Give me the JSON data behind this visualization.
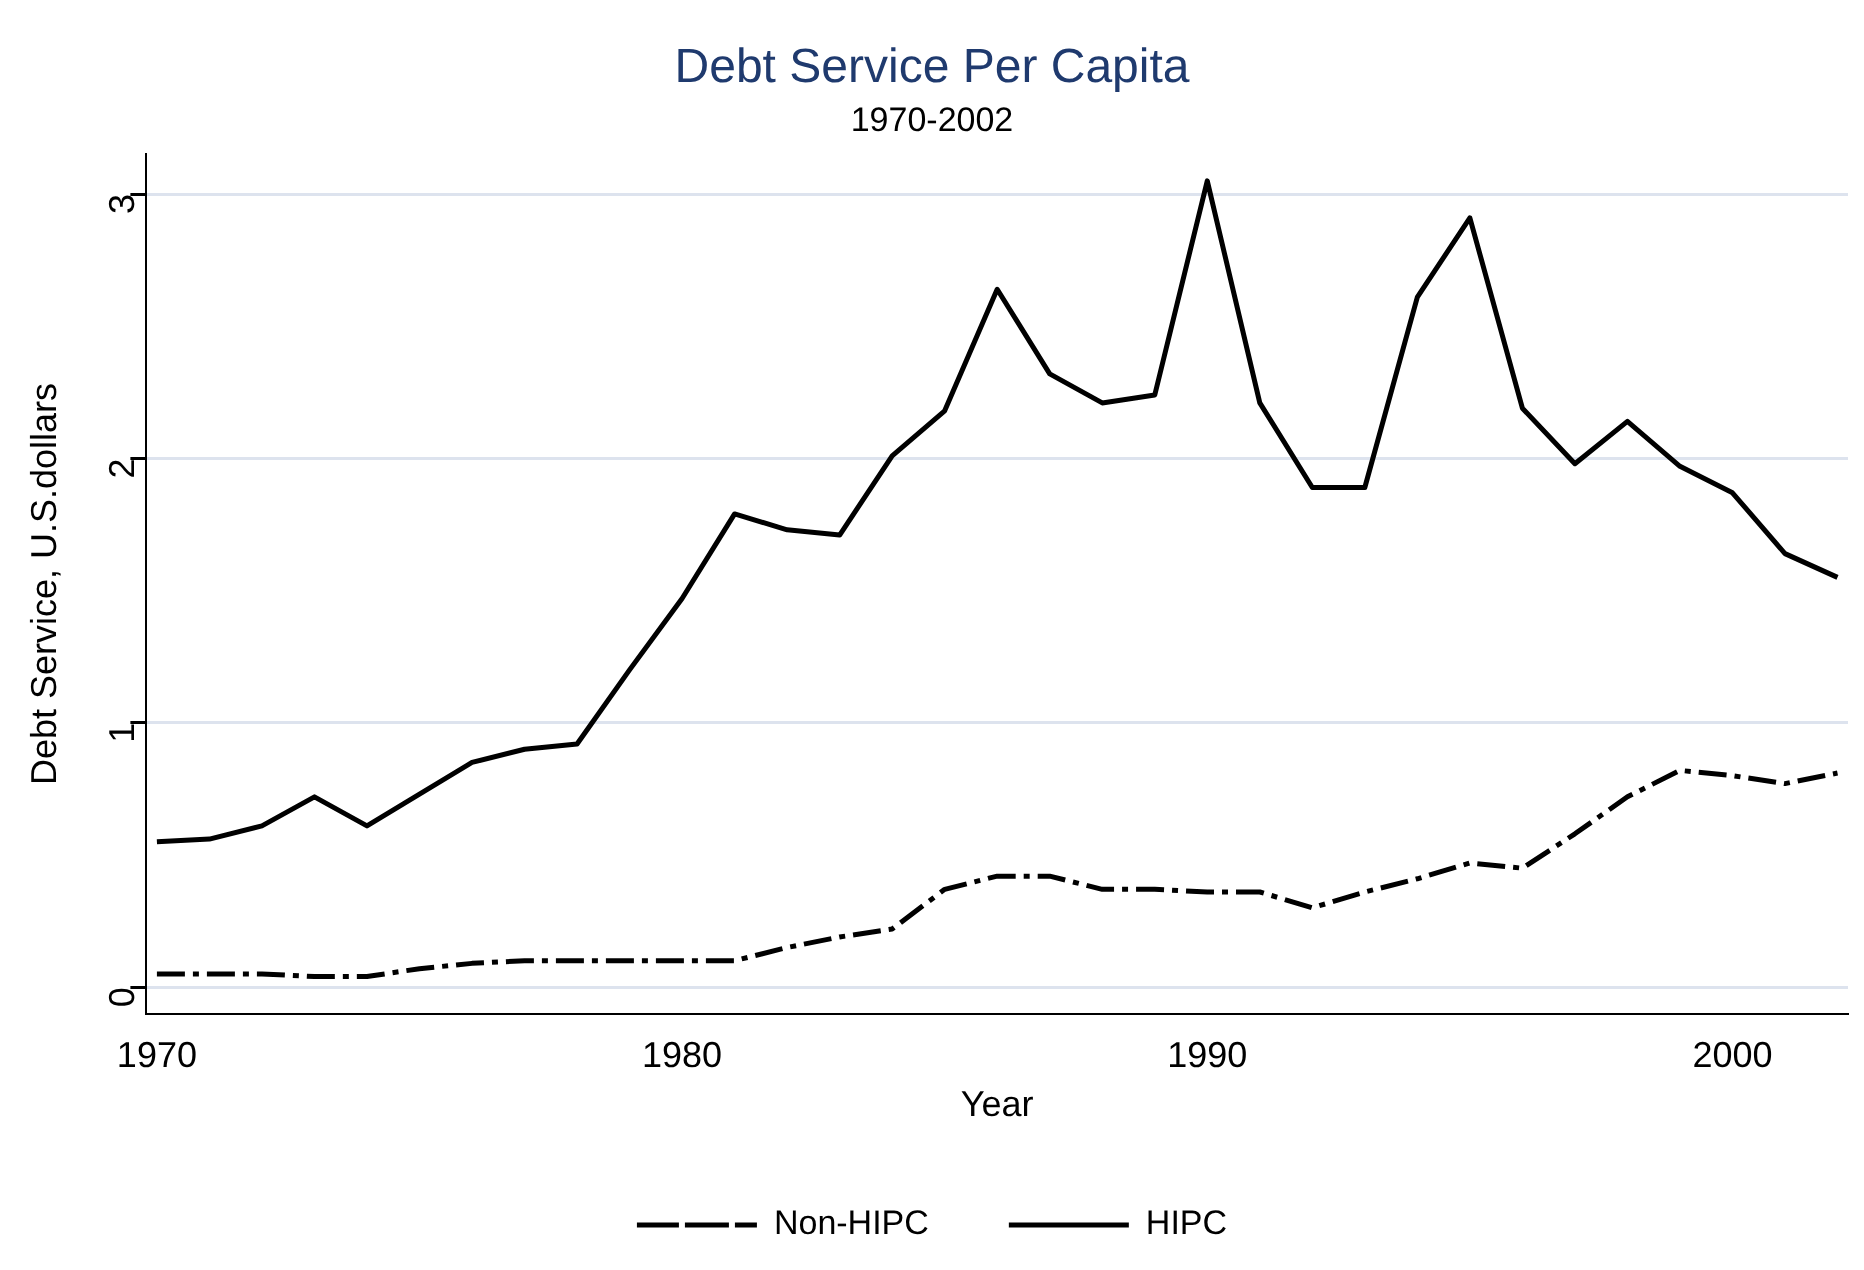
{
  "chart_data": {
    "type": "line",
    "title": "Debt Service Per Capita",
    "subtitle": "1970-2002",
    "xlabel": "Year",
    "ylabel": "Debt Service, U.S.dollars",
    "x": [
      1970,
      1971,
      1972,
      1973,
      1974,
      1975,
      1976,
      1977,
      1978,
      1979,
      1980,
      1981,
      1982,
      1983,
      1984,
      1985,
      1986,
      1987,
      1988,
      1989,
      1990,
      1991,
      1992,
      1993,
      1994,
      1995,
      1996,
      1997,
      1998,
      1999,
      2000,
      2001,
      2002
    ],
    "series": [
      {
        "name": "Non-HIPC",
        "color": "#000000",
        "line_style": "dashed",
        "values": [
          0.05,
          0.05,
          0.05,
          0.04,
          0.04,
          0.07,
          0.09,
          0.1,
          0.1,
          0.1,
          0.1,
          0.1,
          0.15,
          0.19,
          0.22,
          0.37,
          0.42,
          0.42,
          0.37,
          0.37,
          0.36,
          0.36,
          0.3,
          0.36,
          0.41,
          0.47,
          0.45,
          0.58,
          0.72,
          0.82,
          0.8,
          0.77,
          0.81
        ]
      },
      {
        "name": "HIPC",
        "color": "#000000",
        "line_style": "solid",
        "values": [
          0.55,
          0.56,
          0.61,
          0.72,
          0.61,
          0.73,
          0.85,
          0.9,
          0.92,
          1.2,
          1.47,
          1.79,
          1.73,
          1.71,
          2.01,
          2.18,
          2.64,
          2.32,
          2.21,
          2.24,
          3.05,
          2.21,
          1.89,
          1.89,
          2.61,
          2.91,
          2.19,
          1.98,
          2.14,
          1.97,
          1.87,
          1.64,
          1.55
        ]
      }
    ],
    "xlim": [
      1969.8,
      2002.2
    ],
    "xticks": [
      1970,
      1980,
      1990,
      2000
    ],
    "ylim": [
      -0.1,
      3.15
    ],
    "yticks": [
      0,
      1,
      2,
      3
    ],
    "grid": "y",
    "legend": "bottom",
    "marker": "none"
  }
}
